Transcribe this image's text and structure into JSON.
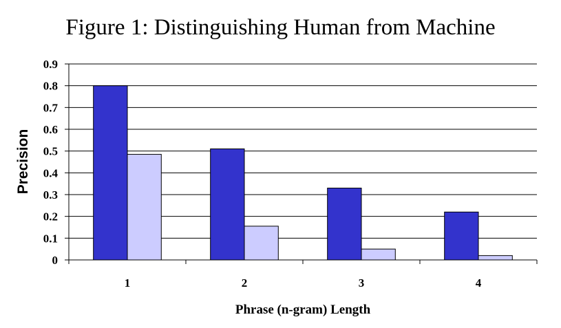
{
  "chart_data": {
    "type": "bar",
    "title": "Figure 1: Distinguishing Human from Machine",
    "xlabel": "Phrase (n-gram) Length",
    "ylabel": "Precision",
    "categories": [
      "1",
      "2",
      "3",
      "4"
    ],
    "ylim": [
      0,
      0.9
    ],
    "yticks": [
      "0",
      "0.1",
      "0.2",
      "0.3",
      "0.4",
      "0.5",
      "0.6",
      "0.7",
      "0.8",
      "0.9"
    ],
    "grid": true,
    "series": [
      {
        "values": [
          0.8,
          0.51,
          0.33,
          0.22
        ],
        "color": "#3333cc"
      },
      {
        "values": [
          0.485,
          0.155,
          0.05,
          0.02
        ],
        "color": "#ccccff"
      }
    ]
  }
}
